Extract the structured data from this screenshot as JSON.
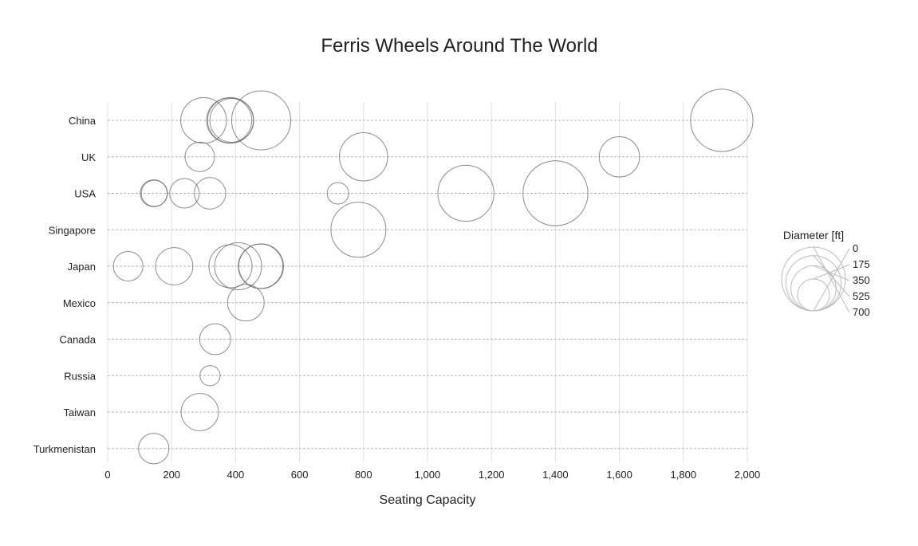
{
  "chart_data": {
    "type": "scatter",
    "title": "Ferris Wheels Around The World",
    "xlabel": "Seating Capacity",
    "ylabel": "",
    "xlim": [
      0,
      2000
    ],
    "xticks": [
      0,
      200,
      400,
      600,
      800,
      1000,
      1200,
      1400,
      1600,
      1800,
      2000
    ],
    "xtick_labels": [
      "0",
      "200",
      "400",
      "600",
      "800",
      "1,000",
      "1,200",
      "1,400",
      "1,600",
      "1,800",
      "2,000"
    ],
    "categories": [
      "China",
      "UK",
      "USA",
      "Singapore",
      "Japan",
      "Mexico",
      "Canada",
      "Russia",
      "Taiwan",
      "Turkmenistan"
    ],
    "grid": true,
    "legend_position": "right",
    "bubble_size": "Diameter [ft]",
    "size_legend": {
      "title": "Diameter [ft]",
      "values": [
        0,
        175,
        350,
        525,
        700
      ],
      "labels": [
        "0",
        "175",
        "350",
        "525",
        "700"
      ]
    },
    "points": [
      {
        "category": "China",
        "x": 300,
        "diameter": 360
      },
      {
        "category": "China",
        "x": 380,
        "diameter": 350
      },
      {
        "category": "China",
        "x": 384,
        "diameter": 360
      },
      {
        "category": "China",
        "x": 388,
        "diameter": 330
      },
      {
        "category": "China",
        "x": 480,
        "diameter": 600
      },
      {
        "category": "China",
        "x": 1920,
        "diameter": 670
      },
      {
        "category": "UK",
        "x": 288,
        "diameter": 150
      },
      {
        "category": "UK",
        "x": 800,
        "diameter": 400
      },
      {
        "category": "UK",
        "x": 1600,
        "diameter": 280
      },
      {
        "category": "USA",
        "x": 144,
        "diameter": 125
      },
      {
        "category": "USA",
        "x": 146,
        "diameter": 118
      },
      {
        "category": "USA",
        "x": 240,
        "diameter": 150
      },
      {
        "category": "USA",
        "x": 320,
        "diameter": 170
      },
      {
        "category": "USA",
        "x": 720,
        "diameter": 80
      },
      {
        "category": "USA",
        "x": 1120,
        "diameter": 540
      },
      {
        "category": "USA",
        "x": 1400,
        "diameter": 725
      },
      {
        "category": "Singapore",
        "x": 784,
        "diameter": 520
      },
      {
        "category": "Japan",
        "x": 64,
        "diameter": 150
      },
      {
        "category": "Japan",
        "x": 208,
        "diameter": 240
      },
      {
        "category": "Japan",
        "x": 384,
        "diameter": 320
      },
      {
        "category": "Japan",
        "x": 408,
        "diameter": 380
      },
      {
        "category": "Japan",
        "x": 480,
        "diameter": 344
      },
      {
        "category": "Japan",
        "x": 478,
        "diameter": 340
      },
      {
        "category": "Mexico",
        "x": 432,
        "diameter": 230
      },
      {
        "category": "Canada",
        "x": 336,
        "diameter": 165
      },
      {
        "category": "Russia",
        "x": 320,
        "diameter": 70
      },
      {
        "category": "Taiwan",
        "x": 288,
        "diameter": 240
      },
      {
        "category": "Turkmenistan",
        "x": 144,
        "diameter": 160
      }
    ]
  }
}
